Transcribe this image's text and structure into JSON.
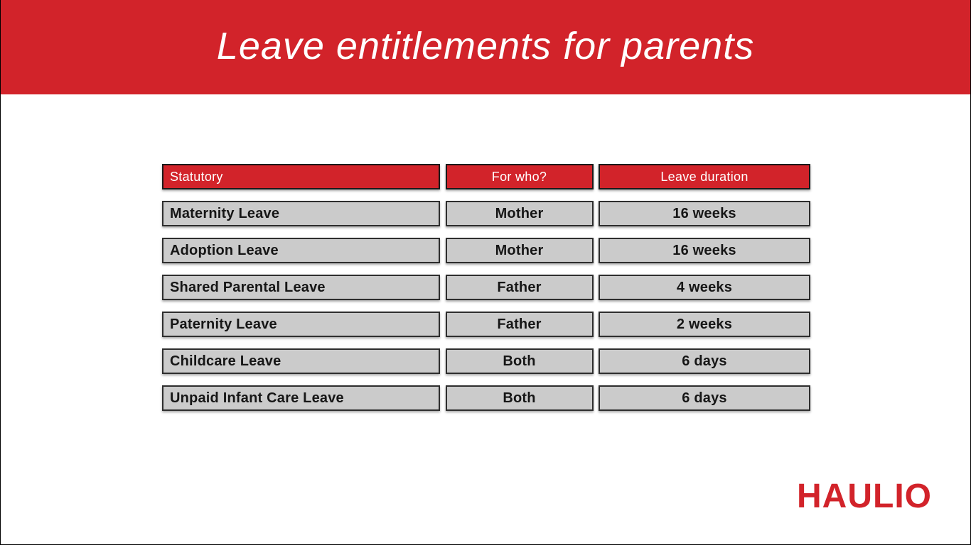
{
  "page": {
    "title": "Leave entitlements for parents",
    "brand": "HAULIO"
  },
  "colors": {
    "accent_red": "#D2232A",
    "row_gray": "#CBCBCB",
    "border_dark": "#2E2E2E",
    "title_text": "#FFFFFF",
    "cell_text": "#161616"
  },
  "table": {
    "headers": {
      "statutory": "Statutory",
      "for_who": "For who?",
      "duration": "Leave duration"
    },
    "rows": [
      {
        "statutory": "Maternity Leave",
        "for_who": "Mother",
        "duration": "16 weeks"
      },
      {
        "statutory": "Adoption Leave",
        "for_who": "Mother",
        "duration": "16 weeks"
      },
      {
        "statutory": "Shared Parental Leave",
        "for_who": "Father",
        "duration": "4 weeks"
      },
      {
        "statutory": "Paternity Leave",
        "for_who": "Father",
        "duration": "2 weeks"
      },
      {
        "statutory": "Childcare Leave",
        "for_who": "Both",
        "duration": "6 days"
      },
      {
        "statutory": "Unpaid Infant Care Leave",
        "for_who": "Both",
        "duration": "6 days"
      }
    ]
  }
}
